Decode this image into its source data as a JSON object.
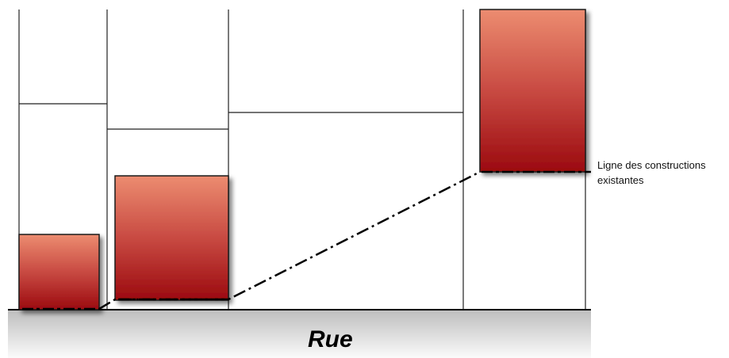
{
  "street": {
    "label": "Rue"
  },
  "callout": {
    "line1": "Ligne des constructions",
    "line2": "existantes"
  },
  "colors": {
    "building_top": "#ec8c70",
    "building_bottom": "#9b0a0f",
    "ground_top": "#c8c8c8",
    "ground_bottom": "#f8f8f8",
    "lines": "#000000"
  }
}
